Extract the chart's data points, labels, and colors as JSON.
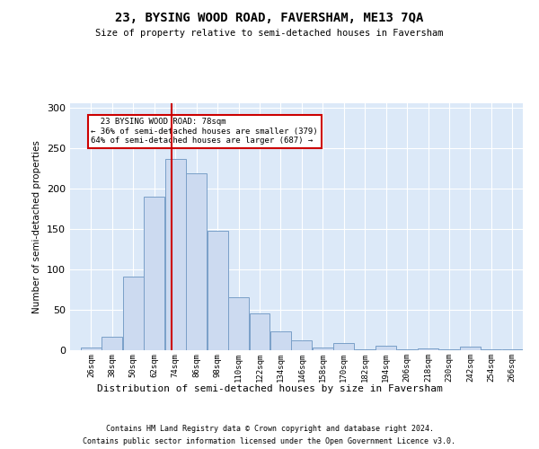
{
  "title": "23, BYSING WOOD ROAD, FAVERSHAM, ME13 7QA",
  "subtitle": "Size of property relative to semi-detached houses in Faversham",
  "xlabel": "Distribution of semi-detached houses by size in Faversham",
  "ylabel": "Number of semi-detached properties",
  "footer_line1": "Contains HM Land Registry data © Crown copyright and database right 2024.",
  "footer_line2": "Contains public sector information licensed under the Open Government Licence v3.0.",
  "annotation_line1": "23 BYSING WOOD ROAD: 78sqm",
  "annotation_line2": "← 36% of semi-detached houses are smaller (379)",
  "annotation_line3": "64% of semi-detached houses are larger (687) →",
  "bar_color": "#ccdaf0",
  "bar_edge_color": "#7a9fc8",
  "marker_color": "#cc0000",
  "background_color": "#dce9f8",
  "categories": [
    "26sqm",
    "38sqm",
    "50sqm",
    "62sqm",
    "74sqm",
    "86sqm",
    "98sqm",
    "110sqm",
    "122sqm",
    "134sqm",
    "146sqm",
    "158sqm",
    "170sqm",
    "182sqm",
    "194sqm",
    "206sqm",
    "218sqm",
    "230sqm",
    "242sqm",
    "254sqm",
    "266sqm"
  ],
  "values": [
    3,
    17,
    91,
    190,
    236,
    219,
    147,
    65,
    46,
    23,
    12,
    3,
    9,
    1,
    6,
    1,
    2,
    1,
    4,
    1,
    1
  ],
  "ylim": [
    0,
    305
  ],
  "yticks": [
    0,
    50,
    100,
    150,
    200,
    250,
    300
  ],
  "bin_width": 12,
  "property_sqm": 78
}
